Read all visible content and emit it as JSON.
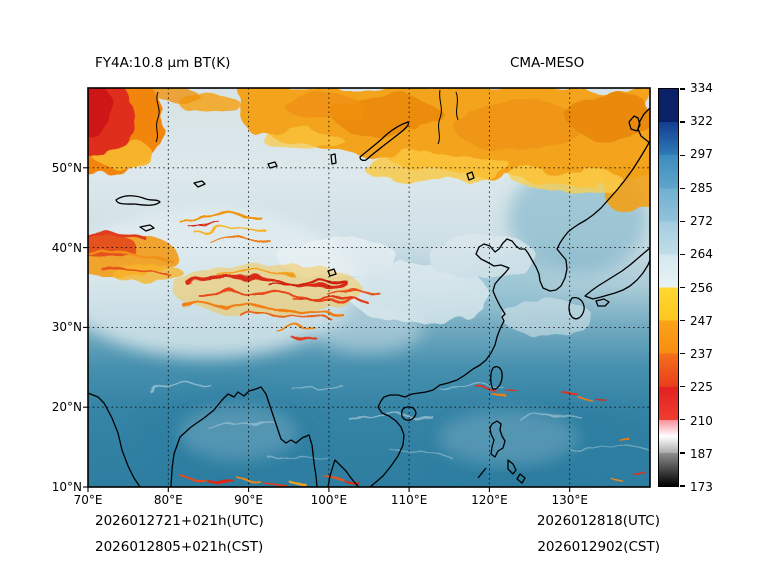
{
  "figure": {
    "title_left": "FY4A:10.8 μm BT(K)",
    "title_right": "CMA-MESO",
    "footer": {
      "left_line1": "2026012721+021h(UTC)",
      "left_line2": "2026012805+021h(CST)",
      "right_line1": "2026012818(UTC)",
      "right_line2": "2026012902(CST)"
    }
  },
  "axes": {
    "x_ticks": [
      {
        "label": "70°E",
        "lon": 70
      },
      {
        "label": "80°E",
        "lon": 80
      },
      {
        "label": "90°E",
        "lon": 90
      },
      {
        "label": "100°E",
        "lon": 100
      },
      {
        "label": "110°E",
        "lon": 110
      },
      {
        "label": "120°E",
        "lon": 120
      },
      {
        "label": "130°E",
        "lon": 130
      }
    ],
    "y_ticks": [
      {
        "label": "50°N",
        "lat": 50
      },
      {
        "label": "40°N",
        "lat": 40
      },
      {
        "label": "30°N",
        "lat": 30
      },
      {
        "label": "20°N",
        "lat": 20
      },
      {
        "label": "10°N",
        "lat": 10
      }
    ],
    "x_range": [
      70,
      140
    ],
    "y_range": [
      10,
      60
    ],
    "grid_style": "dotted black"
  },
  "colorbar": {
    "ticks": [
      334,
      322,
      297,
      285,
      272,
      264,
      256,
      247,
      237,
      225,
      210,
      187,
      173
    ],
    "units": "K",
    "segments": [
      {
        "from": 334,
        "to": 322,
        "stops": [
          "#0b2167"
        ]
      },
      {
        "from": 322,
        "to": 297,
        "stops": [
          "#123d92",
          "#2f7cb6"
        ]
      },
      {
        "from": 297,
        "to": 285,
        "stops": [
          "#3c8cbf",
          "#5fa5cb"
        ]
      },
      {
        "from": 285,
        "to": 272,
        "stops": [
          "#6fb0d0",
          "#92c3da"
        ]
      },
      {
        "from": 272,
        "to": 264,
        "stops": [
          "#a3cde0",
          "#c2dde8"
        ]
      },
      {
        "from": 264,
        "to": 256,
        "stops": [
          "#d5e8ef",
          "#e8f2f5"
        ]
      },
      {
        "from": 256,
        "to": 247,
        "stops": [
          "#ffd934",
          "#fdc61f"
        ]
      },
      {
        "from": 247,
        "to": 237,
        "stops": [
          "#fba317",
          "#f98c12"
        ]
      },
      {
        "from": 237,
        "to": 225,
        "stops": [
          "#f4701b",
          "#ea3d1c"
        ]
      },
      {
        "from": 225,
        "to": 210,
        "stops": [
          "#e22020",
          "#ee3d31"
        ]
      },
      {
        "from": 210,
        "to": 187,
        "stops": [
          "#fb8f9b",
          "#ffffff",
          "#ababab"
        ]
      },
      {
        "from": 187,
        "to": 173,
        "stops": [
          "#8f8f8f",
          "#000000"
        ]
      }
    ]
  },
  "map_palette": {
    "ocean_teal": "#2e7ea1",
    "midlat_pale": "#dce8eb",
    "cloud_orange": "#f3a31b",
    "cloud_red": "#d92b17",
    "cold_core_red": "#ce1812",
    "coastline": "#000000"
  },
  "chart_data": {
    "type": "heatmap",
    "title": "FY4A:10.8 μm BT(K)",
    "comparison_label": "CMA-MESO",
    "value_units": "K",
    "x_tick_labels": [
      "70°E",
      "80°E",
      "90°E",
      "100°E",
      "110°E",
      "120°E",
      "130°E"
    ],
    "y_tick_labels": [
      "50°N",
      "40°N",
      "30°N",
      "20°N",
      "10°N"
    ],
    "x_range_deg_east_approx": [
      70,
      140
    ],
    "y_range_deg_north_approx": [
      10,
      60
    ],
    "colorbar_tick_values": [
      334,
      322,
      297,
      285,
      272,
      264,
      256,
      247,
      237,
      225,
      210,
      187,
      173
    ],
    "grid": "dotted",
    "legend_position": "right colorbar",
    "annotations": [
      "2026012721+021h(UTC)",
      "2026012805+021h(CST)",
      "2026012818(UTC)",
      "2026012902(CST)"
    ]
  }
}
